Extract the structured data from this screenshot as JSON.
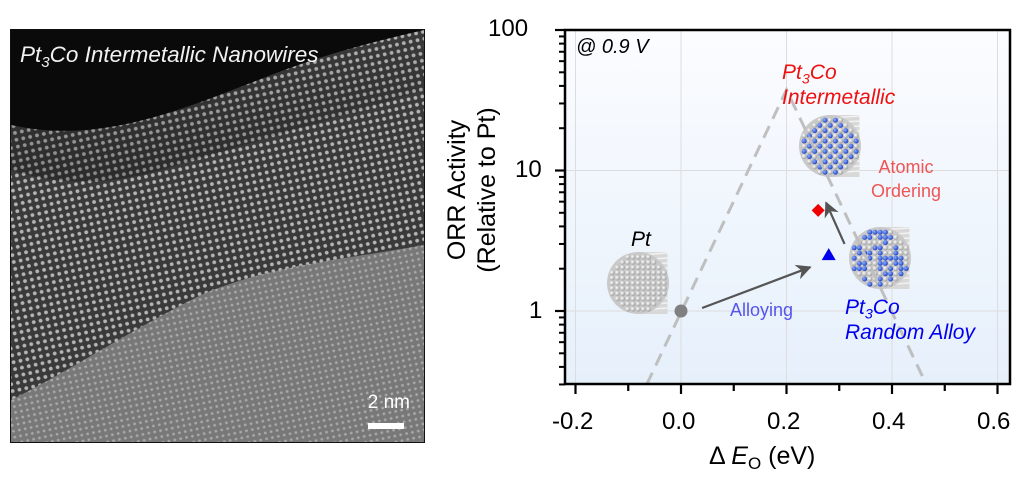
{
  "tem_panel": {
    "title_main": "Pt",
    "title_sub": "3",
    "title_rest": "Co Intermetallic Nanowires",
    "scale_bar_label": "2 nm"
  },
  "chart_data": {
    "type": "scatter",
    "title": "",
    "xlabel_prefix": "Δ",
    "xlabel_var": "E",
    "xlabel_sub": "O",
    "xlabel_unit": "(eV)",
    "ylabel_line1": "ORR Activity",
    "ylabel_line2": "(Relative to Pt)",
    "xlim": [
      -0.22,
      0.62
    ],
    "ylim": [
      0.3,
      100
    ],
    "yscale": "log",
    "grid": true,
    "x_ticks": [
      "-0.2",
      "0.0",
      "0.2",
      "0.4",
      "0.6"
    ],
    "x_tick_values": [
      -0.2,
      0.0,
      0.2,
      0.4,
      0.6
    ],
    "y_ticks": [
      "1",
      "10",
      "100"
    ],
    "y_tick_values": [
      1,
      10,
      100
    ],
    "annotation_condition": "@ 0.9 V",
    "volcano": {
      "x": [
        -0.065,
        0.2,
        0.465
      ],
      "y": [
        0.3,
        37.5,
        0.3
      ],
      "style": "dashed",
      "color": "#bfbfbf"
    },
    "points": [
      {
        "name": "Pt",
        "x": 0.0,
        "y": 1.0,
        "marker": "circle",
        "color": "#808080"
      },
      {
        "name": "Pt3Co Random Alloy",
        "x": 0.28,
        "y": 2.5,
        "marker": "triangle",
        "color": "#0000ee"
      },
      {
        "name": "Pt3Co Intermetallic",
        "x": 0.26,
        "y": 5.2,
        "marker": "diamond",
        "color": "#ee0000"
      }
    ],
    "arrows": [
      {
        "label": "Alloying",
        "from": [
          0.04,
          1.05
        ],
        "to": [
          0.245,
          2.05
        ]
      },
      {
        "label": "Atomic Ordering",
        "from": [
          0.31,
          3.0
        ],
        "to": [
          0.275,
          5.9
        ]
      }
    ],
    "labels": {
      "pt": "Pt",
      "alloying": "Alloying",
      "ordering_line1": "Atomic",
      "ordering_line2": "Ordering",
      "random_main": "Pt",
      "random_sub": "3",
      "random_rest": "Co",
      "random_line2": "Random Alloy",
      "inter_main": "Pt",
      "inter_sub": "3",
      "inter_rest": "Co",
      "inter_line2": "Intermetallic"
    },
    "colors": {
      "pt_text": "#000000",
      "alloying_text": "#5555ee",
      "ordering_text": "#ee5555",
      "random_text": "#0000ee",
      "inter_text": "#ee1111",
      "arrow": "#555555"
    }
  }
}
